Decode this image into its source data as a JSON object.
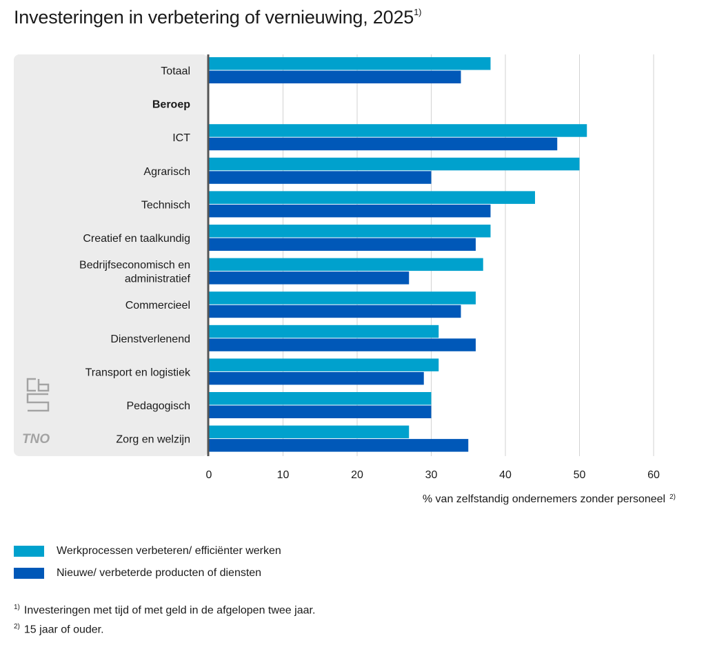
{
  "title": "Investeringen in verbetering of vernieuwing, 2025",
  "title_note": "1)",
  "chart_data": {
    "type": "bar",
    "orientation": "horizontal",
    "categories": [
      "Totaal",
      "Beroep",
      "ICT",
      "Agrarisch",
      "Technisch",
      "Creatief en taalkundig",
      "Bedrijfseconomisch en administratief",
      "Commercieel",
      "Dienstverlenend",
      "Transport en logistiek",
      "Pedagogisch",
      "Zorg en welzijn"
    ],
    "category_lines": [
      [
        "Totaal"
      ],
      [
        "Beroep"
      ],
      [
        "ICT"
      ],
      [
        "Agrarisch"
      ],
      [
        "Technisch"
      ],
      [
        "Creatief en taalkundig"
      ],
      [
        "Bedrijfseconomisch en",
        "administratief"
      ],
      [
        "Commercieel"
      ],
      [
        "Dienstverlenend"
      ],
      [
        "Transport en logistiek"
      ],
      [
        "Pedagogisch"
      ],
      [
        "Zorg en welzijn"
      ]
    ],
    "bold_categories": [
      "Beroep"
    ],
    "series": [
      {
        "name": "Werkprocessen verbeteren/ efficiënter werken",
        "color": "#00a1cd",
        "values": [
          38,
          null,
          51,
          50,
          44,
          38,
          37,
          36,
          31,
          31,
          30,
          27
        ]
      },
      {
        "name": "Nieuwe/ verbeterde producten of diensten",
        "color": "#0058b8",
        "values": [
          34,
          null,
          47,
          30,
          38,
          36,
          27,
          34,
          36,
          29,
          30,
          35
        ]
      }
    ],
    "xlim": [
      0,
      60
    ],
    "xticks": [
      "0",
      "10",
      "20",
      "30",
      "40",
      "50",
      "60"
    ],
    "xlabel": "% van zelfstandig ondernemers zonder personeel",
    "xlabel_note": "2)",
    "grid": "vertical",
    "legend_position": "bottom-left"
  },
  "logos": {
    "cbs": "cbs",
    "tno": "TNO"
  },
  "footnotes": [
    {
      "mark": "1)",
      "text": "Investeringen met tijd of met geld in de afgelopen twee jaar."
    },
    {
      "mark": "2)",
      "text": "15 jaar of ouder."
    }
  ]
}
